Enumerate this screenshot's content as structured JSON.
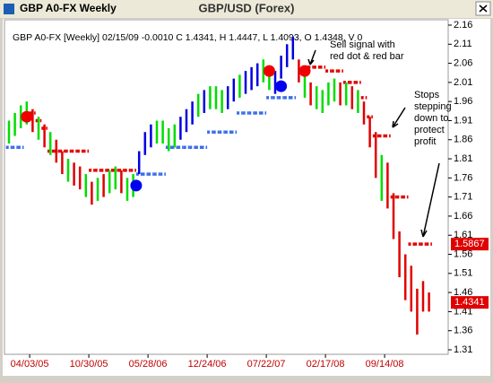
{
  "window_title": "GBP A0-FX Weekly",
  "chart_data": {
    "type": "bar",
    "title": "GBP/USD (Forex)",
    "info": "GBP A0-FX [Weekly] 02/15/09 -0.0010 C 1.4341, H 1.4447, L 1.4093, O 1.4348, V 0",
    "high": [
      1.91,
      1.93,
      1.95,
      1.96,
      1.94,
      1.92,
      1.9,
      1.88,
      1.86,
      1.83,
      1.81,
      1.8,
      1.79,
      1.77,
      1.75,
      1.76,
      1.77,
      1.78,
      1.79,
      1.78,
      1.76,
      1.77,
      1.83,
      1.88,
      1.9,
      1.91,
      1.91,
      1.89,
      1.9,
      1.92,
      1.94,
      1.96,
      1.98,
      1.99,
      2.0,
      2.0,
      1.99,
      2.0,
      2.02,
      2.03,
      2.04,
      2.05,
      2.06,
      2.07,
      2.05,
      2.04,
      2.08,
      2.11,
      2.13,
      2.07,
      2.03,
      2.01,
      2.0,
      1.99,
      2.01,
      2.02,
      2.01,
      2.01,
      2.0,
      1.99,
      1.96,
      1.92,
      1.88,
      1.82,
      1.8,
      1.72,
      1.62,
      1.56,
      1.53,
      1.47,
      1.49,
      1.46
    ],
    "low": [
      1.85,
      1.87,
      1.89,
      1.9,
      1.88,
      1.86,
      1.84,
      1.82,
      1.8,
      1.77,
      1.75,
      1.74,
      1.73,
      1.71,
      1.69,
      1.7,
      1.71,
      1.72,
      1.73,
      1.72,
      1.7,
      1.71,
      1.77,
      1.82,
      1.84,
      1.85,
      1.85,
      1.83,
      1.84,
      1.86,
      1.88,
      1.9,
      1.92,
      1.93,
      1.94,
      1.94,
      1.93,
      1.94,
      1.96,
      1.97,
      1.98,
      1.99,
      2.0,
      2.01,
      1.99,
      1.98,
      2.02,
      2.05,
      2.07,
      2.01,
      1.97,
      1.95,
      1.94,
      1.93,
      1.95,
      1.96,
      1.95,
      1.95,
      1.94,
      1.93,
      1.9,
      1.84,
      1.76,
      1.7,
      1.68,
      1.6,
      1.5,
      1.44,
      1.41,
      1.35,
      1.41,
      1.41
    ],
    "bar_colors": [
      "#00dd00",
      "#00dd00",
      "#00dd00",
      "#00dd00",
      "#e00000",
      "#00dd00",
      "#e00000",
      "#00dd00",
      "#e00000",
      "#e00000",
      "#00dd00",
      "#e00000",
      "#e00000",
      "#00dd00",
      "#e00000",
      "#00dd00",
      "#e00000",
      "#00dd00",
      "#00dd00",
      "#e00000",
      "#00dd00",
      "#00dd00",
      "#0000e0",
      "#0000e0",
      "#0000e0",
      "#00dd00",
      "#00dd00",
      "#00dd00",
      "#00dd00",
      "#0000e0",
      "#0000e0",
      "#0000e0",
      "#00dd00",
      "#0000e0",
      "#00dd00",
      "#00dd00",
      "#00dd00",
      "#0000e0",
      "#0000e0",
      "#00dd00",
      "#0000e0",
      "#0000e0",
      "#0000e0",
      "#00dd00",
      "#00dd00",
      "#0000e0",
      "#0000e0",
      "#0000e0",
      "#0000e0",
      "#e00000",
      "#00dd00",
      "#e00000",
      "#00dd00",
      "#00dd00",
      "#00dd00",
      "#00dd00",
      "#e00000",
      "#00dd00",
      "#e00000",
      "#00dd00",
      "#e00000",
      "#e00000",
      "#e00000",
      "#00dd00",
      "#e00000",
      "#e00000",
      "#e00000",
      "#e00000",
      "#e00000",
      "#e00000",
      "#e00000",
      "#e00000"
    ],
    "stops_up": {
      "color": "#3a6ee8",
      "values": [
        1.84,
        1.84,
        1.84,
        null,
        null,
        null,
        null,
        null,
        null,
        null,
        null,
        null,
        null,
        null,
        null,
        null,
        null,
        null,
        null,
        null,
        null,
        null,
        1.77,
        1.77,
        1.77,
        1.77,
        1.77,
        1.84,
        1.84,
        1.84,
        1.84,
        1.84,
        1.84,
        1.84,
        1.88,
        1.88,
        1.88,
        1.88,
        1.88,
        1.93,
        1.93,
        1.93,
        1.93,
        1.93,
        1.97,
        1.97,
        1.97,
        1.97,
        1.97,
        null,
        null,
        null,
        null,
        null,
        null,
        null,
        null,
        null,
        null,
        null,
        null,
        null,
        null,
        null,
        null,
        null,
        null,
        null,
        null,
        null,
        null,
        null
      ]
    },
    "stops_down": {
      "color": "#e00000",
      "values": [
        null,
        null,
        null,
        null,
        1.93,
        1.91,
        1.89,
        1.83,
        1.83,
        1.83,
        1.83,
        1.83,
        1.83,
        1.83,
        1.78,
        1.78,
        1.78,
        1.78,
        1.78,
        1.78,
        1.78,
        1.78,
        null,
        null,
        null,
        null,
        null,
        null,
        null,
        null,
        null,
        null,
        null,
        null,
        null,
        null,
        null,
        null,
        null,
        null,
        null,
        null,
        null,
        null,
        null,
        null,
        null,
        null,
        null,
        null,
        2.05,
        2.05,
        2.05,
        2.05,
        2.04,
        2.04,
        2.04,
        2.01,
        2.01,
        2.01,
        1.97,
        1.92,
        1.87,
        1.87,
        1.87,
        1.71,
        1.71,
        1.71,
        1.5867,
        1.5867,
        1.5867,
        1.5867
      ]
    },
    "signals": [
      {
        "x": 3,
        "y": 1.92,
        "color": "#ee0000"
      },
      {
        "x": 21.5,
        "y": 1.74,
        "color": "#0000ee"
      },
      {
        "x": 44,
        "y": 2.04,
        "color": "#ee0000"
      },
      {
        "x": 46,
        "y": 2.0,
        "color": "#0000ee"
      },
      {
        "x": 50,
        "y": 2.04,
        "color": "#ee0000"
      }
    ],
    "price_labels": [
      {
        "value": 1.5867,
        "color": "#e00000"
      },
      {
        "value": 1.4341,
        "color": "#e00000"
      }
    ],
    "xticks": [
      {
        "value": 3.5,
        "label": "04/03/05"
      },
      {
        "value": 13.5,
        "label": "10/30/05"
      },
      {
        "value": 23.5,
        "label": "05/28/06"
      },
      {
        "value": 33.5,
        "label": "12/24/06"
      },
      {
        "value": 43.5,
        "label": "07/22/07"
      },
      {
        "value": 53.5,
        "label": "02/17/08"
      },
      {
        "value": 63.5,
        "label": "09/14/08"
      }
    ],
    "ylim": [
      1.31,
      2.16
    ],
    "yticks": [
      2.16,
      2.11,
      2.06,
      2.01,
      1.96,
      1.91,
      1.86,
      1.81,
      1.76,
      1.71,
      1.66,
      1.61,
      1.56,
      1.51,
      1.46,
      1.41,
      1.36,
      1.31
    ],
    "annotations": [
      {
        "lines": [
          "Sell signal with",
          "red dot & red bar"
        ]
      },
      {
        "lines": [
          "Stops",
          "stepping",
          "down to",
          "protect",
          "profit"
        ]
      }
    ]
  }
}
